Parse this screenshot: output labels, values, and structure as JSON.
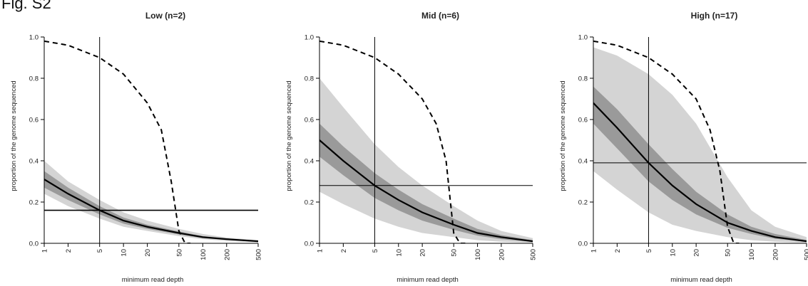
{
  "figure_label": "Fig. S2",
  "chart_data": [
    {
      "type": "line",
      "title": "Low (n=2)",
      "xlabel": "minimum read depth",
      "ylabel": "proportion of the genome sequenced",
      "x_scale": "log",
      "xlim": [
        1,
        500
      ],
      "ylim": [
        0,
        1
      ],
      "x_ticks": [
        1,
        2,
        5,
        10,
        20,
        50,
        100,
        200,
        500
      ],
      "x_tick_labels": [
        "1",
        "2",
        "5",
        "10",
        "20",
        "50",
        "100",
        "200",
        "500"
      ],
      "y_ticks": [
        0,
        0.2,
        0.4,
        0.6,
        0.8,
        1
      ],
      "y_tick_labels": [
        "0.0",
        "0.2",
        "0.4",
        "0.6",
        "0.8",
        "1.0"
      ],
      "grid": false,
      "vline_x": 5,
      "hline_y": 0.16,
      "series": [
        {
          "role": "median",
          "style": "solid",
          "color": "#000000",
          "x": [
            1,
            2,
            5,
            10,
            20,
            50,
            100,
            200,
            500
          ],
          "y": [
            0.31,
            0.24,
            0.16,
            0.11,
            0.08,
            0.05,
            0.03,
            0.02,
            0.01
          ]
        },
        {
          "role": "expected",
          "style": "dashed",
          "color": "#000000",
          "x": [
            1,
            2,
            5,
            10,
            20,
            30,
            40,
            50,
            60,
            70
          ],
          "y": [
            0.98,
            0.96,
            0.9,
            0.82,
            0.68,
            0.55,
            0.3,
            0.06,
            0.0,
            0.0
          ]
        }
      ],
      "bands": [
        {
          "role": "outer",
          "color": "#d4d4d4",
          "x": [
            1,
            2,
            5,
            10,
            20,
            50,
            100,
            200,
            500
          ],
          "lower": [
            0.24,
            0.18,
            0.12,
            0.08,
            0.06,
            0.035,
            0.02,
            0.012,
            0.005
          ],
          "upper": [
            0.4,
            0.3,
            0.21,
            0.15,
            0.11,
            0.07,
            0.045,
            0.028,
            0.015
          ]
        },
        {
          "role": "inner",
          "color": "#9a9a9a",
          "x": [
            1,
            2,
            5,
            10,
            20,
            50,
            100,
            200,
            500
          ],
          "lower": [
            0.27,
            0.21,
            0.14,
            0.095,
            0.07,
            0.043,
            0.025,
            0.016,
            0.008
          ],
          "upper": [
            0.35,
            0.27,
            0.18,
            0.125,
            0.09,
            0.058,
            0.035,
            0.024,
            0.012
          ]
        }
      ]
    },
    {
      "type": "line",
      "title": "Mid (n=6)",
      "xlabel": "minimum read depth",
      "ylabel": "proportion of the genome sequenced",
      "x_scale": "log",
      "xlim": [
        1,
        500
      ],
      "ylim": [
        0,
        1
      ],
      "x_ticks": [
        1,
        2,
        5,
        10,
        20,
        50,
        100,
        200,
        500
      ],
      "x_tick_labels": [
        "1",
        "2",
        "5",
        "10",
        "20",
        "50",
        "100",
        "200",
        "500"
      ],
      "y_ticks": [
        0,
        0.2,
        0.4,
        0.6,
        0.8,
        1
      ],
      "y_tick_labels": [
        "0.0",
        "0.2",
        "0.4",
        "0.6",
        "0.8",
        "1.0"
      ],
      "grid": false,
      "vline_x": 5,
      "hline_y": 0.28,
      "series": [
        {
          "role": "median",
          "style": "solid",
          "color": "#000000",
          "x": [
            1,
            2,
            5,
            10,
            20,
            50,
            100,
            200,
            500
          ],
          "y": [
            0.5,
            0.4,
            0.28,
            0.21,
            0.15,
            0.09,
            0.05,
            0.03,
            0.01
          ]
        },
        {
          "role": "expected",
          "style": "dashed",
          "color": "#000000",
          "x": [
            1,
            2,
            5,
            10,
            20,
            30,
            40,
            50,
            60,
            70
          ],
          "y": [
            0.98,
            0.96,
            0.9,
            0.82,
            0.7,
            0.58,
            0.4,
            0.05,
            0.0,
            0.0
          ]
        }
      ],
      "bands": [
        {
          "role": "outer",
          "color": "#d4d4d4",
          "x": [
            1,
            2,
            5,
            10,
            20,
            50,
            100,
            200,
            500
          ],
          "lower": [
            0.25,
            0.19,
            0.12,
            0.08,
            0.05,
            0.03,
            0.015,
            0.008,
            0.003
          ],
          "upper": [
            0.8,
            0.66,
            0.48,
            0.37,
            0.28,
            0.18,
            0.11,
            0.06,
            0.025
          ]
        },
        {
          "role": "inner",
          "color": "#9a9a9a",
          "x": [
            1,
            2,
            5,
            10,
            20,
            50,
            100,
            200,
            500
          ],
          "lower": [
            0.42,
            0.33,
            0.22,
            0.16,
            0.11,
            0.065,
            0.037,
            0.02,
            0.007
          ],
          "upper": [
            0.58,
            0.47,
            0.34,
            0.26,
            0.19,
            0.12,
            0.07,
            0.04,
            0.015
          ]
        }
      ]
    },
    {
      "type": "line",
      "title": "High (n=17)",
      "xlabel": "minimum read depth",
      "ylabel": "proportion of the genome sequenced",
      "x_scale": "log",
      "xlim": [
        1,
        500
      ],
      "ylim": [
        0,
        1
      ],
      "x_ticks": [
        1,
        2,
        5,
        10,
        20,
        50,
        100,
        200,
        500
      ],
      "x_tick_labels": [
        "1",
        "2",
        "5",
        "10",
        "20",
        "50",
        "100",
        "200",
        "500"
      ],
      "y_ticks": [
        0,
        0.2,
        0.4,
        0.6,
        0.8,
        1
      ],
      "y_tick_labels": [
        "0.0",
        "0.2",
        "0.4",
        "0.6",
        "0.8",
        "1.0"
      ],
      "grid": false,
      "vline_x": 5,
      "hline_y": 0.39,
      "series": [
        {
          "role": "median",
          "style": "solid",
          "color": "#000000",
          "x": [
            1,
            2,
            5,
            10,
            20,
            50,
            100,
            200,
            500
          ],
          "y": [
            0.68,
            0.56,
            0.39,
            0.28,
            0.19,
            0.1,
            0.06,
            0.03,
            0.01
          ]
        },
        {
          "role": "expected",
          "style": "dashed",
          "color": "#000000",
          "x": [
            1,
            2,
            5,
            10,
            20,
            30,
            40,
            50,
            60,
            70
          ],
          "y": [
            0.98,
            0.96,
            0.9,
            0.82,
            0.7,
            0.55,
            0.35,
            0.08,
            0.0,
            0.0
          ]
        }
      ],
      "bands": [
        {
          "role": "outer",
          "color": "#d4d4d4",
          "x": [
            1,
            2,
            5,
            10,
            20,
            50,
            100,
            200,
            500
          ],
          "lower": [
            0.35,
            0.26,
            0.15,
            0.09,
            0.06,
            0.03,
            0.015,
            0.008,
            0.003
          ],
          "upper": [
            0.95,
            0.91,
            0.82,
            0.72,
            0.58,
            0.32,
            0.16,
            0.08,
            0.03
          ]
        },
        {
          "role": "inner",
          "color": "#9a9a9a",
          "x": [
            1,
            2,
            5,
            10,
            20,
            50,
            100,
            200,
            500
          ],
          "lower": [
            0.58,
            0.46,
            0.3,
            0.21,
            0.14,
            0.075,
            0.045,
            0.022,
            0.008
          ],
          "upper": [
            0.76,
            0.65,
            0.48,
            0.36,
            0.25,
            0.14,
            0.08,
            0.045,
            0.016
          ]
        }
      ]
    }
  ]
}
